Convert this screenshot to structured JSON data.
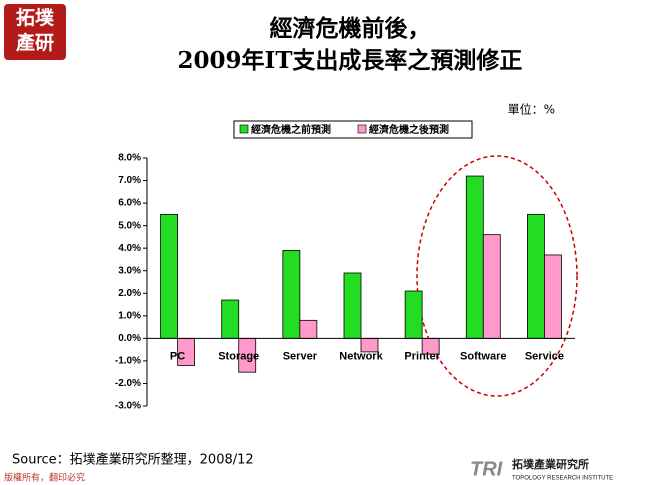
{
  "logo": {
    "text_top": "拓墣",
    "text_bottom": "產研"
  },
  "unit_note": "單位：%",
  "source": "Source：拓墣產業研究所整理，2008/12",
  "footer": "版權所有，翻印必究",
  "brand": {
    "mark": "TRI",
    "name": "拓墣產業研究所",
    "english": "TOPOLOGY RESEARCH INSTITUTE"
  },
  "chart_data": {
    "type": "bar",
    "title": "經濟危機前後，",
    "subtitle": "2009年IT支出成長率之預測修正",
    "categories": [
      "PC",
      "Storage",
      "Server",
      "Network",
      "Printer",
      "Software",
      "Service"
    ],
    "series": [
      {
        "name": "經濟危機之前預測",
        "color": "#22dd22",
        "values": [
          5.5,
          1.7,
          3.9,
          2.9,
          2.1,
          7.2,
          5.5
        ]
      },
      {
        "name": "經濟危機之後預測",
        "color": "#ff99cc",
        "values": [
          -1.2,
          -1.5,
          0.8,
          -0.6,
          -0.7,
          4.6,
          3.7
        ]
      }
    ],
    "ylim": [
      -3,
      8
    ],
    "yticks": [
      {
        "value": -3,
        "label": "-3.0%"
      },
      {
        "value": -2,
        "label": "-2.0%"
      },
      {
        "value": -1,
        "label": "-1.0%"
      },
      {
        "value": 0,
        "label": "0.0%"
      },
      {
        "value": 1,
        "label": "1.0%"
      },
      {
        "value": 2,
        "label": "2.0%"
      },
      {
        "value": 3,
        "label": "3.0%"
      },
      {
        "value": 4,
        "label": "4.0%"
      },
      {
        "value": 5,
        "label": "5.0%"
      },
      {
        "value": 6,
        "label": "6.0%"
      },
      {
        "value": 7,
        "label": "7.0%"
      },
      {
        "value": 8,
        "label": "8.0%"
      }
    ],
    "legend": "top"
  }
}
